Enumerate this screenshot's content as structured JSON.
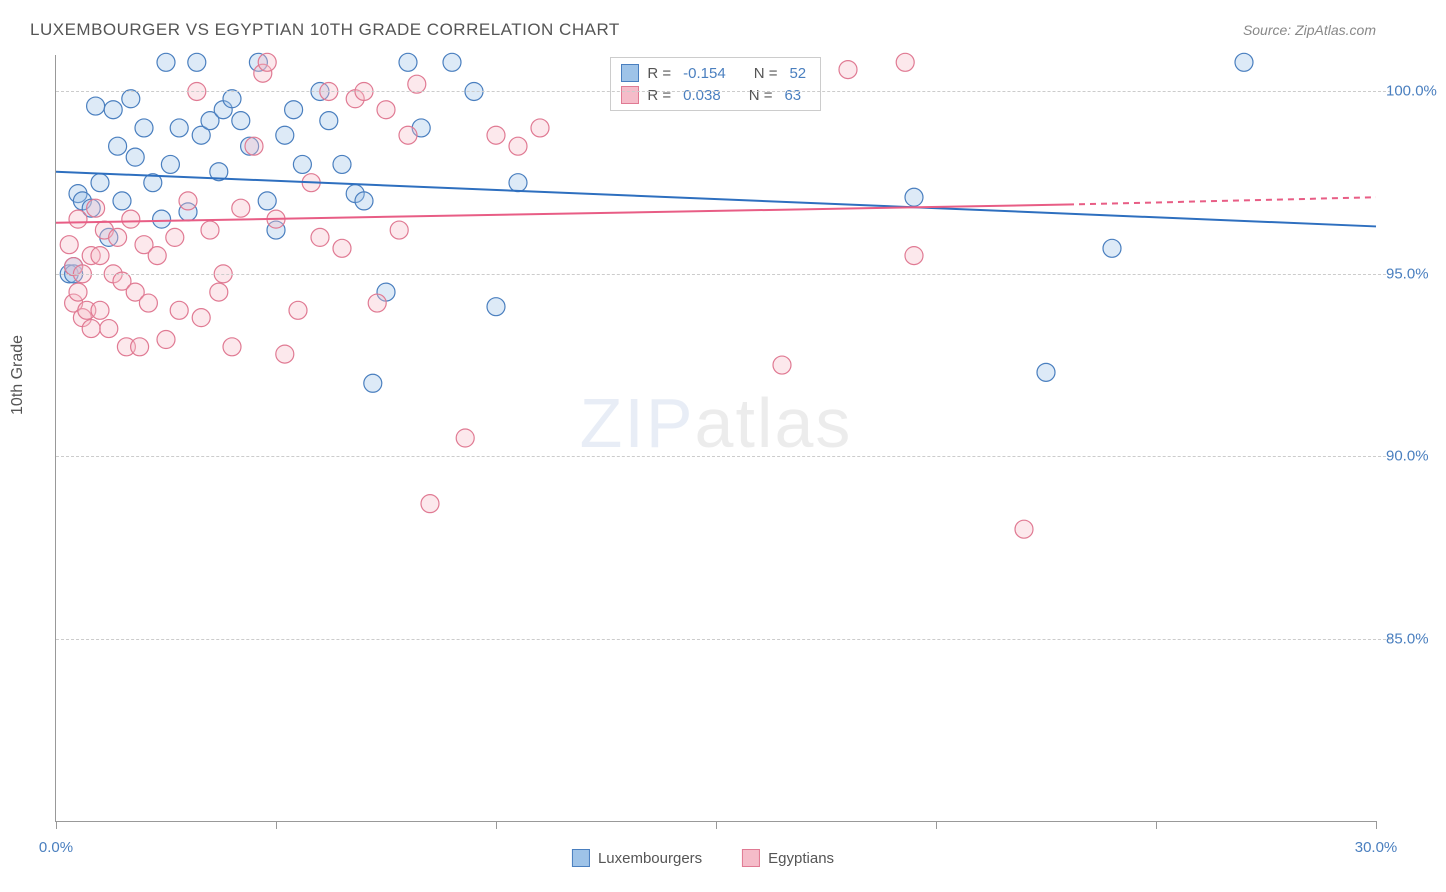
{
  "title": "LUXEMBOURGER VS EGYPTIAN 10TH GRADE CORRELATION CHART",
  "source": "Source: ZipAtlas.com",
  "y_axis_label": "10th Grade",
  "watermark": {
    "part1": "ZIP",
    "part2": "atlas"
  },
  "chart": {
    "type": "scatter",
    "background_color": "#ffffff",
    "grid_color": "#cccccc",
    "axis_color": "#999999",
    "xlim": [
      0,
      30
    ],
    "ylim": [
      80,
      101
    ],
    "x_ticks": [
      0,
      5,
      10,
      15,
      20,
      25,
      30
    ],
    "x_tick_labels": {
      "0": "0.0%",
      "30": "30.0%"
    },
    "x_label_color": "#4a7fbf",
    "y_ticks": [
      85,
      90,
      95,
      100
    ],
    "y_tick_labels": {
      "85": "85.0%",
      "90": "90.0%",
      "95": "95.0%",
      "100": "100.0%"
    },
    "y_label_color": "#4a7fbf",
    "marker_radius": 9,
    "marker_stroke_width": 1.2,
    "marker_fill_opacity": 0.35,
    "reg_line_width": 2
  },
  "series": [
    {
      "name": "Luxembourgers",
      "color_fill": "#9ec3e8",
      "color_stroke": "#4a7fbf",
      "reg_color": "#2e6fbf",
      "R": "-0.154",
      "N": "52",
      "regression": {
        "x1": 0,
        "y1": 97.8,
        "x2": 30,
        "y2": 96.3
      },
      "points": [
        [
          0.3,
          95.0
        ],
        [
          0.4,
          95.0
        ],
        [
          0.4,
          95.2
        ],
        [
          0.5,
          97.2
        ],
        [
          0.6,
          97.0
        ],
        [
          0.8,
          96.8
        ],
        [
          0.9,
          99.6
        ],
        [
          1.0,
          97.5
        ],
        [
          1.2,
          96.0
        ],
        [
          1.3,
          99.5
        ],
        [
          1.4,
          98.5
        ],
        [
          1.5,
          97.0
        ],
        [
          1.7,
          99.8
        ],
        [
          1.8,
          98.2
        ],
        [
          2.0,
          99.0
        ],
        [
          2.2,
          97.5
        ],
        [
          2.4,
          96.5
        ],
        [
          2.5,
          100.8
        ],
        [
          2.6,
          98.0
        ],
        [
          2.8,
          99.0
        ],
        [
          3.0,
          96.7
        ],
        [
          3.2,
          100.8
        ],
        [
          3.3,
          98.8
        ],
        [
          3.5,
          99.2
        ],
        [
          3.7,
          97.8
        ],
        [
          3.8,
          99.5
        ],
        [
          4.0,
          99.8
        ],
        [
          4.2,
          99.2
        ],
        [
          4.4,
          98.5
        ],
        [
          4.6,
          100.8
        ],
        [
          4.8,
          97.0
        ],
        [
          5.0,
          96.2
        ],
        [
          5.2,
          98.8
        ],
        [
          5.4,
          99.5
        ],
        [
          5.6,
          98.0
        ],
        [
          6.0,
          100.0
        ],
        [
          6.2,
          99.2
        ],
        [
          6.5,
          98.0
        ],
        [
          6.8,
          97.2
        ],
        [
          7.0,
          97.0
        ],
        [
          7.2,
          92.0
        ],
        [
          7.5,
          94.5
        ],
        [
          8.0,
          100.8
        ],
        [
          8.3,
          99.0
        ],
        [
          9.0,
          100.8
        ],
        [
          9.5,
          100.0
        ],
        [
          10.0,
          94.1
        ],
        [
          10.5,
          97.5
        ],
        [
          19.5,
          97.1
        ],
        [
          22.5,
          92.3
        ],
        [
          24.0,
          95.7
        ],
        [
          27.0,
          100.8
        ]
      ]
    },
    {
      "name": "Egyptians",
      "color_fill": "#f5bcc9",
      "color_stroke": "#e07a93",
      "reg_color": "#e85d85",
      "R": "0.038",
      "N": "63",
      "regression": {
        "x1": 0,
        "y1": 96.4,
        "x2": 23,
        "y2": 96.9
      },
      "regression_dash": {
        "x1": 23,
        "y1": 96.9,
        "x2": 30,
        "y2": 97.1
      },
      "points": [
        [
          0.3,
          95.8
        ],
        [
          0.4,
          95.2
        ],
        [
          0.4,
          94.2
        ],
        [
          0.5,
          94.5
        ],
        [
          0.5,
          96.5
        ],
        [
          0.6,
          93.8
        ],
        [
          0.6,
          95.0
        ],
        [
          0.7,
          94.0
        ],
        [
          0.8,
          95.5
        ],
        [
          0.8,
          93.5
        ],
        [
          0.9,
          96.8
        ],
        [
          1.0,
          95.5
        ],
        [
          1.0,
          94.0
        ],
        [
          1.1,
          96.2
        ],
        [
          1.2,
          93.5
        ],
        [
          1.3,
          95.0
        ],
        [
          1.4,
          96.0
        ],
        [
          1.5,
          94.8
        ],
        [
          1.6,
          93.0
        ],
        [
          1.7,
          96.5
        ],
        [
          1.8,
          94.5
        ],
        [
          1.9,
          93.0
        ],
        [
          2.0,
          95.8
        ],
        [
          2.1,
          94.2
        ],
        [
          2.3,
          95.5
        ],
        [
          2.5,
          93.2
        ],
        [
          2.7,
          96.0
        ],
        [
          2.8,
          94.0
        ],
        [
          3.0,
          97.0
        ],
        [
          3.2,
          100.0
        ],
        [
          3.3,
          93.8
        ],
        [
          3.5,
          96.2
        ],
        [
          3.7,
          94.5
        ],
        [
          3.8,
          95.0
        ],
        [
          4.0,
          93.0
        ],
        [
          4.2,
          96.8
        ],
        [
          4.5,
          98.5
        ],
        [
          4.7,
          100.5
        ],
        [
          4.8,
          100.8
        ],
        [
          5.0,
          96.5
        ],
        [
          5.2,
          92.8
        ],
        [
          5.5,
          94.0
        ],
        [
          5.8,
          97.5
        ],
        [
          6.0,
          96.0
        ],
        [
          6.2,
          100.0
        ],
        [
          6.5,
          95.7
        ],
        [
          6.8,
          99.8
        ],
        [
          7.0,
          100.0
        ],
        [
          7.3,
          94.2
        ],
        [
          7.5,
          99.5
        ],
        [
          7.8,
          96.2
        ],
        [
          8.0,
          98.8
        ],
        [
          8.2,
          100.2
        ],
        [
          8.5,
          88.7
        ],
        [
          9.3,
          90.5
        ],
        [
          10.0,
          98.8
        ],
        [
          10.5,
          98.5
        ],
        [
          11.0,
          99.0
        ],
        [
          16.5,
          92.5
        ],
        [
          18.0,
          100.6
        ],
        [
          19.3,
          100.8
        ],
        [
          19.5,
          95.5
        ],
        [
          22.0,
          88.0
        ]
      ]
    }
  ],
  "bottom_legend": [
    {
      "label": "Luxembourgers",
      "fill": "#9ec3e8",
      "stroke": "#4a7fbf"
    },
    {
      "label": "Egyptians",
      "fill": "#f5bcc9",
      "stroke": "#e07a93"
    }
  ],
  "stats_box": {
    "R_label": "R =",
    "N_label": "N ="
  }
}
